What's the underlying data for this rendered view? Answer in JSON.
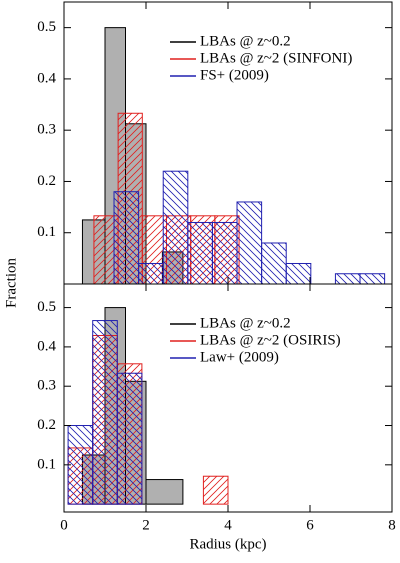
{
  "chart_data": [
    {
      "type": "histogram",
      "y_label": "Fraction",
      "xlim": [
        0,
        8
      ],
      "xticks": [
        0,
        2,
        4,
        6,
        8
      ],
      "ylim": [
        0,
        0.55
      ],
      "yticks": [
        0.1,
        0.2,
        0.3,
        0.4,
        0.5
      ],
      "series": [
        {
          "name": "LBAs @ z~0.2",
          "color": "#000000",
          "fill": "#b0b0b0",
          "bins": [
            0.45,
            1.0,
            1.5,
            2.0,
            2.4,
            2.9
          ],
          "values": [
            0.125,
            0.5,
            0.3125,
            0,
            0.0625
          ]
        },
        {
          "name": "LBAs @ z~2 (SINFONI)",
          "color": "#e0201e",
          "hatch": "/",
          "bins": [
            0.73,
            1.32,
            1.91,
            2.5,
            3.09,
            3.68,
            4.27
          ],
          "values": [
            0.133,
            0.333,
            0.133,
            0.133,
            0.133,
            0.133
          ]
        },
        {
          "name": "FS+ (2009)",
          "color": "#2020b0",
          "hatch": "\\",
          "bins": [
            1.22,
            1.82,
            2.42,
            3.02,
            3.62,
            4.22,
            4.82,
            5.42,
            6.02,
            6.62,
            7.22,
            7.82
          ],
          "values": [
            0.18,
            0.04,
            0.22,
            0.12,
            0.12,
            0.16,
            0.08,
            0.04,
            0,
            0.02,
            0.02
          ]
        }
      ]
    },
    {
      "type": "histogram",
      "x_label": "Radius (kpc)",
      "xlim": [
        0,
        8
      ],
      "xticks": [
        0,
        2,
        4,
        6,
        8
      ],
      "ylim": [
        -0.02,
        0.56
      ],
      "yticks": [
        0.1,
        0.2,
        0.3,
        0.4,
        0.5
      ],
      "series": [
        {
          "name": "LBAs @ z~0.2",
          "color": "#000000",
          "fill": "#b0b0b0",
          "bins": [
            0.45,
            1.0,
            1.5,
            2.0,
            2.9
          ],
          "values": [
            0.125,
            0.5,
            0.3125,
            0.0625
          ]
        },
        {
          "name": "LBAs @ z~2 (OSIRIS)",
          "color": "#e0201e",
          "hatch": "/",
          "bins": [
            0.1,
            0.7,
            1.3,
            1.9,
            3.4,
            4.0
          ],
          "values": [
            0.143,
            0.429,
            0.357,
            0,
            0.071
          ]
        },
        {
          "name": "Law+ (2009)",
          "color": "#2020b0",
          "hatch": "\\",
          "bins": [
            0.1,
            0.7,
            1.3,
            1.9
          ],
          "values": [
            0.2,
            0.467,
            0.333
          ]
        }
      ]
    }
  ]
}
